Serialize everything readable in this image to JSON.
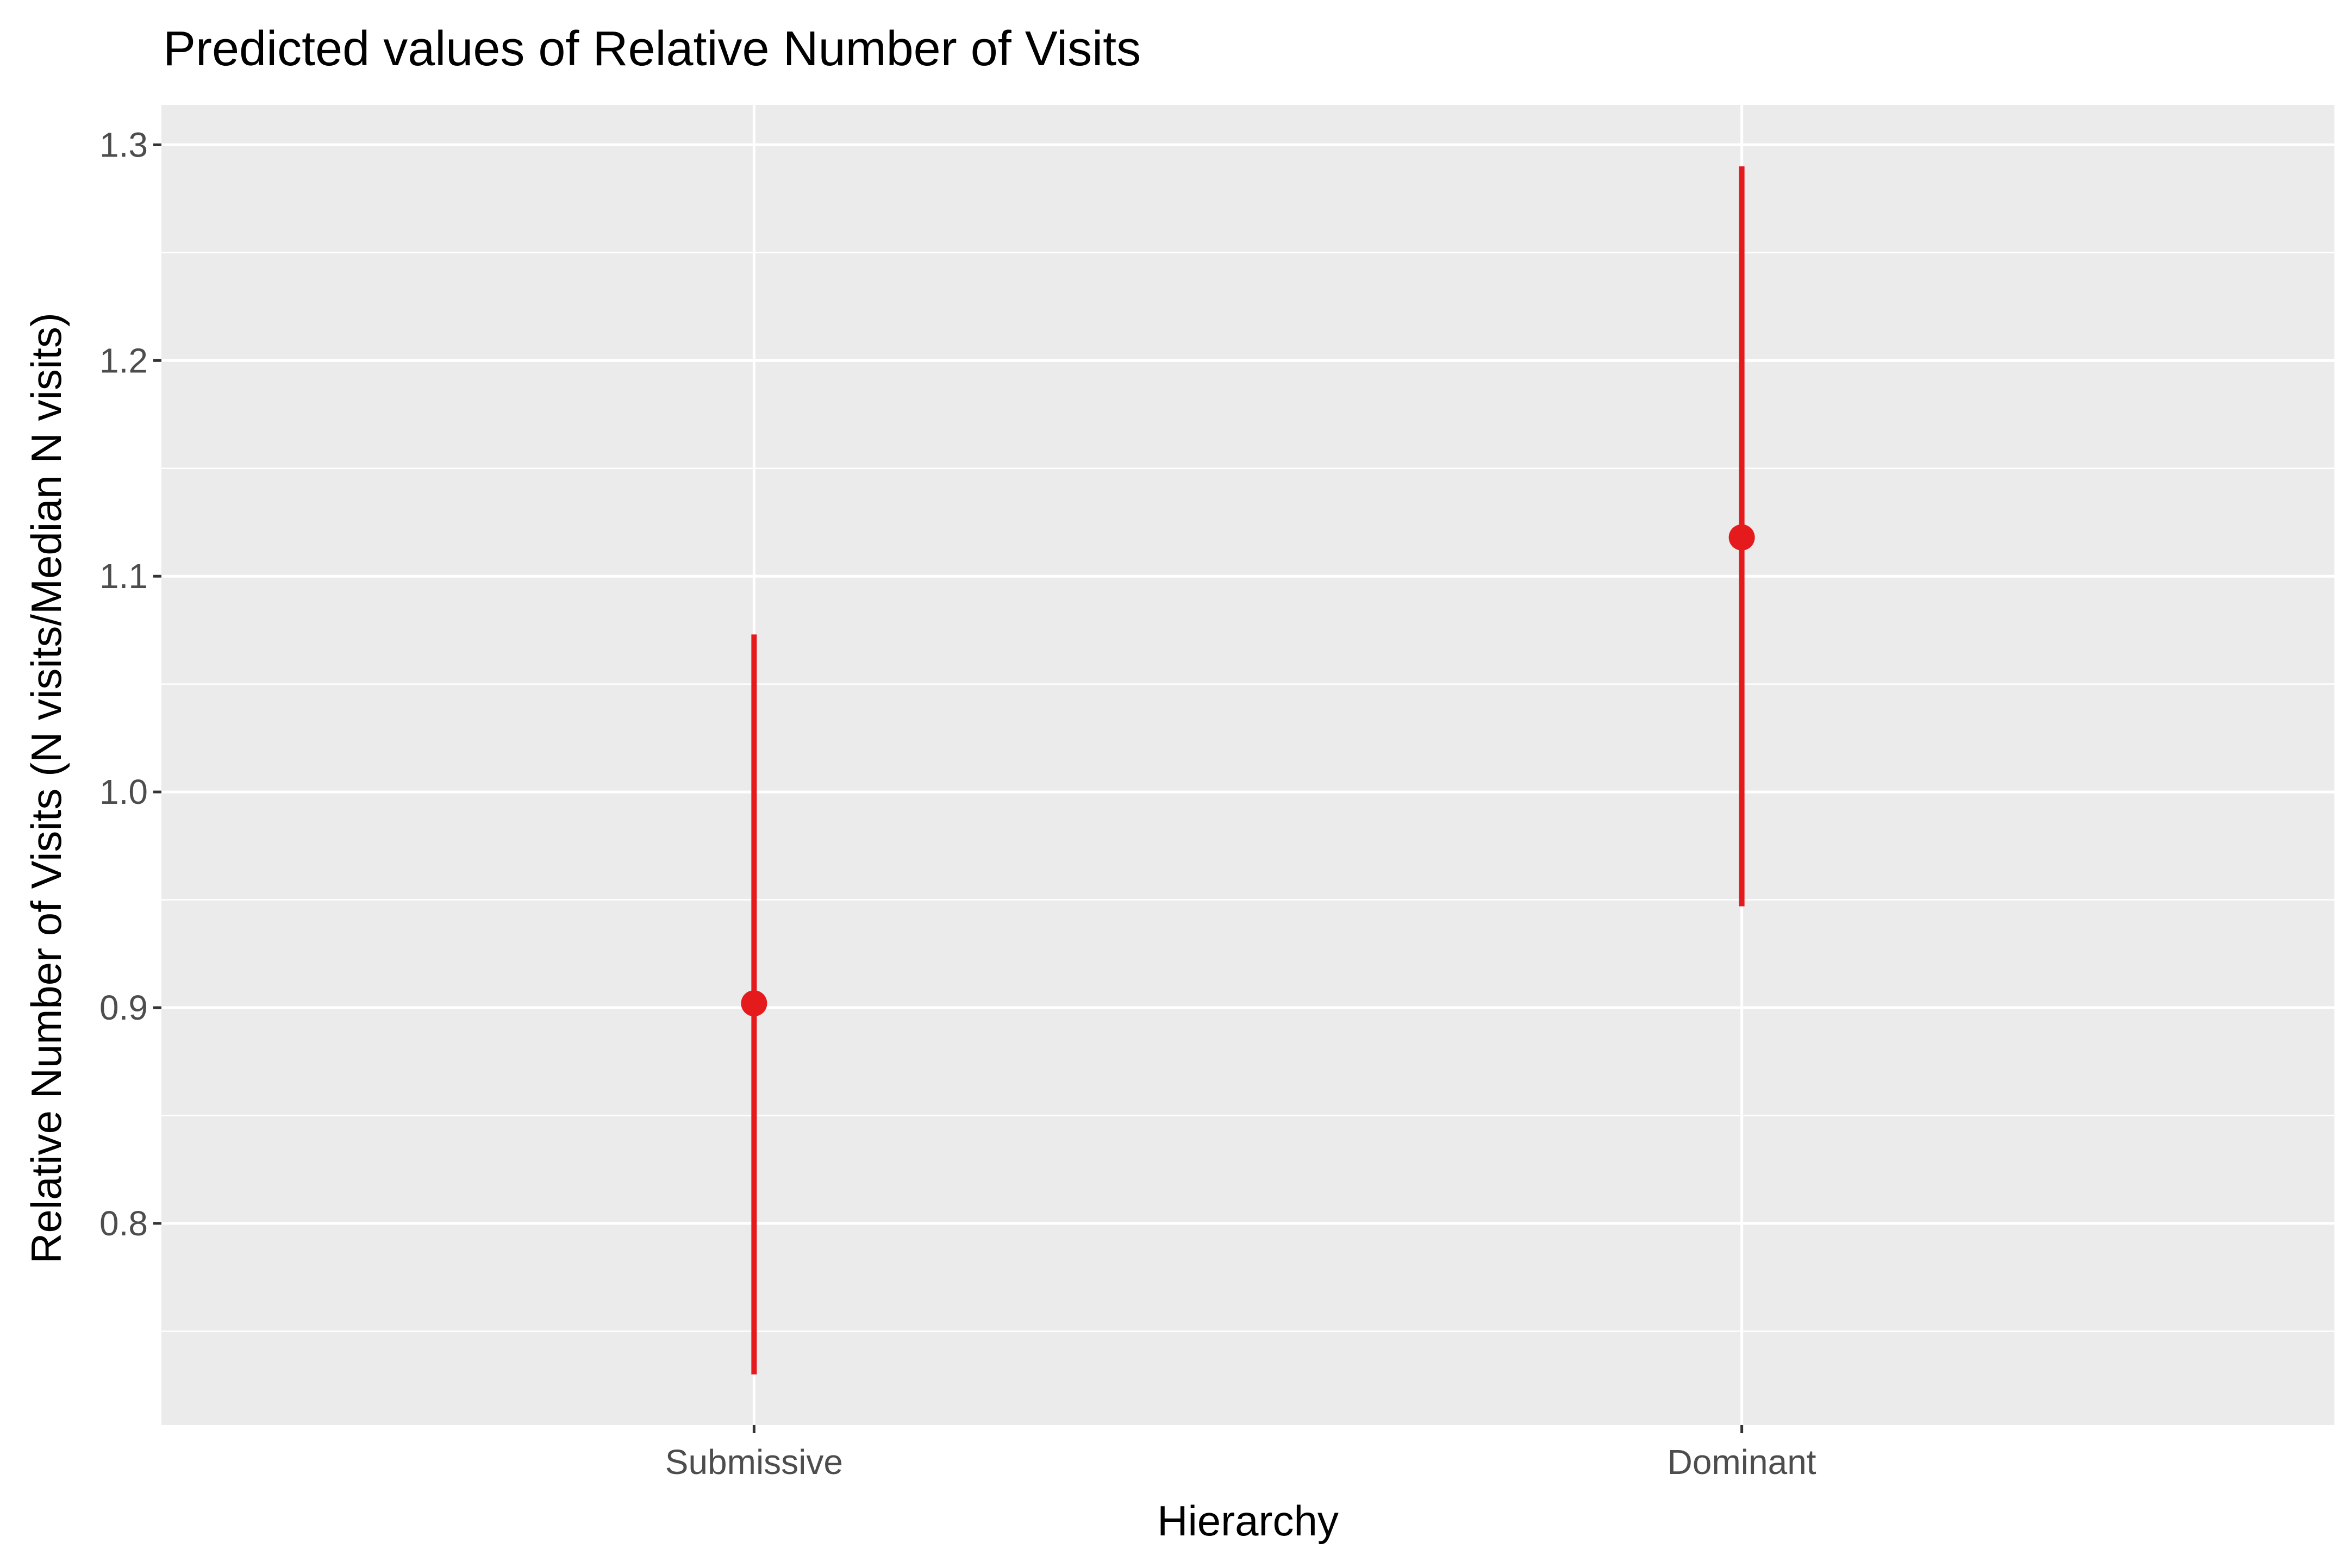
{
  "chart_data": {
    "type": "pointrange",
    "title": "Predicted values of Relative Number of Visits",
    "xlabel": "Hierarchy",
    "ylabel": "Relative Number of Visits (N visits/Median N visits)",
    "categories": [
      "Submissive",
      "Dominant"
    ],
    "y_ticks": [
      "0.8",
      "0.9",
      "1.0",
      "1.1",
      "1.2",
      "1.3"
    ],
    "ylim": [
      0.7065,
      1.3185
    ],
    "grid": true,
    "legend": "none",
    "series": [
      {
        "values": [
          0.902,
          1.118
        ],
        "lower": [
          0.73,
          0.947
        ],
        "upper": [
          1.073,
          1.29
        ]
      }
    ],
    "colors": {
      "point": "#e41a1c",
      "panel_background": "#ebebeb",
      "grid": "#ffffff",
      "tick_text": "#4d4d4d",
      "tick_mark": "#333333"
    }
  }
}
